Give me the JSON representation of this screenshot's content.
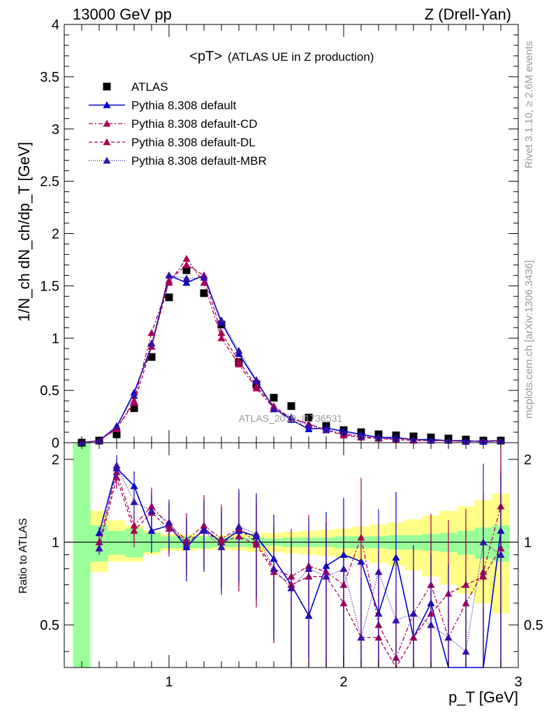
{
  "header": {
    "left": "13000 GeV pp",
    "right": "Z (Drell-Yan)"
  },
  "side": {
    "top": "Rivet 3.1.10, ≥ 2.6M events",
    "bottom": "mcplots.cern.ch [arXiv:1306.3436]"
  },
  "colors": {
    "atlas": "#000000",
    "default": "#0000cc",
    "cd": "#aa0055",
    "dl": "#aa0055",
    "mbr": "#3311aa",
    "band_inner": "#99ff99",
    "band_outer": "#ffff88"
  },
  "chart_data": [
    {
      "type": "line",
      "title": "<pT>",
      "title_suffix": "(ATLAS UE in Z production)",
      "ylabel": "1/N_ch dN_ch/dp_T [GeV]",
      "xlabel": "",
      "watermark": "ATLAS_2019_I1736531",
      "xlim": [
        0.4,
        3.0
      ],
      "ylim": [
        0,
        4
      ],
      "yticks": [
        0,
        0.5,
        1,
        1.5,
        2,
        2.5,
        3,
        3.5,
        4
      ],
      "yticklabels": [
        "0",
        "0.5",
        "1",
        "1.5",
        "2",
        "2.5",
        "3",
        "3.5",
        "4"
      ],
      "legend_position": "top-left",
      "x": [
        0.5,
        0.6,
        0.7,
        0.8,
        0.9,
        1.0,
        1.1,
        1.2,
        1.3,
        1.4,
        1.5,
        1.6,
        1.7,
        1.8,
        1.9,
        2.0,
        2.1,
        2.2,
        2.3,
        2.4,
        2.5,
        2.6,
        2.7,
        2.8,
        2.9
      ],
      "series": [
        {
          "name": "ATLAS",
          "marker": "square",
          "values": [
            0.0,
            0.02,
            0.08,
            0.33,
            0.82,
            1.39,
            1.65,
            1.43,
            1.13,
            0.77,
            0.56,
            0.43,
            0.35,
            0.24,
            0.16,
            0.12,
            0.1,
            0.08,
            0.07,
            0.06,
            0.05,
            0.04,
            0.03,
            0.02,
            0.02
          ]
        },
        {
          "name": "Pythia 8.308 default",
          "marker": "triangle",
          "dash": "",
          "values": [
            0.0,
            0.02,
            0.15,
            0.48,
            0.92,
            1.6,
            1.53,
            1.6,
            1.15,
            0.85,
            0.59,
            0.33,
            0.22,
            0.13,
            0.14,
            0.11,
            0.08,
            0.05,
            0.05,
            0.03,
            0.03,
            0.02,
            0.02,
            0.01,
            0.02
          ]
        },
        {
          "name": "Pythia 8.308 default-CD",
          "marker": "triangle",
          "dash": "6,3,2,3",
          "values": [
            0.0,
            0.02,
            0.13,
            0.4,
            1.05,
            1.53,
            1.76,
            1.53,
            1.0,
            0.75,
            0.52,
            0.33,
            0.24,
            0.18,
            0.12,
            0.08,
            0.06,
            0.04,
            0.04,
            0.03,
            0.02,
            0.02,
            0.01,
            0.02,
            0.02
          ]
        },
        {
          "name": "Pythia 8.308 default-DL",
          "marker": "triangle",
          "dash": "5,3",
          "values": [
            0.0,
            0.02,
            0.14,
            0.38,
            0.92,
            1.55,
            1.7,
            1.6,
            1.05,
            0.78,
            0.54,
            0.35,
            0.23,
            0.18,
            0.12,
            0.07,
            0.05,
            0.04,
            0.03,
            0.02,
            0.02,
            0.02,
            0.01,
            0.02,
            0.02
          ]
        },
        {
          "name": "Pythia 8.308 default-MBR",
          "marker": "triangle",
          "dash": "1,2",
          "values": [
            0.0,
            0.02,
            0.16,
            0.45,
            0.95,
            1.6,
            1.57,
            1.58,
            1.17,
            0.88,
            0.6,
            0.32,
            0.24,
            0.16,
            0.12,
            0.1,
            0.06,
            0.05,
            0.04,
            0.03,
            0.02,
            0.02,
            0.01,
            0.02,
            0.02
          ]
        }
      ]
    },
    {
      "type": "line",
      "title": "",
      "ylabel": "Ratio to ATLAS",
      "xlabel": "p_T [GeV]",
      "xlim": [
        0.4,
        3.0
      ],
      "ylim": [
        0.35,
        2.3
      ],
      "xticks": [
        1,
        2,
        3
      ],
      "xticklabels": [
        "1",
        "2",
        "3"
      ],
      "yticks": [
        0.5,
        1,
        2
      ],
      "yticklabels": [
        "0.5",
        "1",
        "2"
      ],
      "reference_line": 1,
      "band_edges": [
        0.45,
        0.55,
        0.65,
        0.75,
        0.85,
        0.95,
        1.05,
        1.15,
        1.25,
        1.35,
        1.45,
        1.55,
        1.65,
        1.75,
        1.85,
        1.95,
        2.05,
        2.15,
        2.25,
        2.35,
        2.45,
        2.55,
        2.65,
        2.75,
        2.85,
        2.95
      ],
      "band_inner_low": [
        0.35,
        0.85,
        0.9,
        0.88,
        0.92,
        0.95,
        0.95,
        0.95,
        0.96,
        0.96,
        0.96,
        0.97,
        0.96,
        0.96,
        0.96,
        0.95,
        0.95,
        0.95,
        0.94,
        0.94,
        0.93,
        0.92,
        0.9,
        0.87,
        0.85
      ],
      "band_inner_high": [
        2.3,
        1.15,
        1.1,
        1.12,
        1.08,
        1.05,
        1.05,
        1.05,
        1.04,
        1.04,
        1.04,
        1.03,
        1.04,
        1.04,
        1.04,
        1.05,
        1.05,
        1.05,
        1.06,
        1.06,
        1.07,
        1.08,
        1.1,
        1.13,
        1.15
      ],
      "band_outer_low": [
        0.35,
        0.78,
        0.85,
        0.85,
        0.9,
        0.93,
        0.93,
        0.94,
        0.94,
        0.93,
        0.92,
        0.92,
        0.91,
        0.9,
        0.89,
        0.88,
        0.86,
        0.84,
        0.82,
        0.79,
        0.75,
        0.7,
        0.65,
        0.6,
        0.55
      ],
      "band_outer_high": [
        2.3,
        1.3,
        1.2,
        1.15,
        1.1,
        1.07,
        1.07,
        1.06,
        1.06,
        1.07,
        1.08,
        1.08,
        1.09,
        1.1,
        1.11,
        1.12,
        1.14,
        1.16,
        1.18,
        1.21,
        1.25,
        1.3,
        1.35,
        1.42,
        1.5
      ],
      "x": [
        0.6,
        0.7,
        0.8,
        0.9,
        1.0,
        1.1,
        1.2,
        1.3,
        1.4,
        1.5,
        1.6,
        1.7,
        1.8,
        1.9,
        2.0,
        2.1,
        2.2,
        2.3,
        2.4,
        2.5,
        2.6,
        2.7,
        2.8,
        2.9
      ],
      "series": [
        {
          "name": "Pythia 8.308 default",
          "values": [
            1.08,
            1.86,
            1.6,
            1.1,
            1.15,
            0.96,
            1.12,
            1.0,
            1.1,
            1.05,
            0.87,
            0.7,
            0.54,
            0.82,
            0.9,
            0.85,
            0.55,
            0.88,
            0.45,
            0.6,
            0.3,
            0.3,
            0.3,
            1.1
          ]
        },
        {
          "name": "Pythia 8.308 default-CD",
          "values": [
            1.0,
            1.8,
            1.15,
            1.35,
            1.15,
            1.02,
            1.15,
            1.03,
            1.12,
            1.0,
            0.8,
            0.75,
            0.82,
            0.78,
            0.7,
            1.04,
            0.5,
            0.38,
            0.55,
            0.7,
            0.45,
            0.6,
            0.78,
            1.35
          ]
        },
        {
          "name": "Pythia 8.308 default-DL",
          "values": [
            0.95,
            1.72,
            1.1,
            1.28,
            1.12,
            1.0,
            1.1,
            1.0,
            1.05,
            0.98,
            0.78,
            0.7,
            0.75,
            0.75,
            0.6,
            0.45,
            0.45,
            0.35,
            0.45,
            0.55,
            0.65,
            0.7,
            0.75,
            0.95
          ]
        },
        {
          "name": "Pythia 8.308 default-MBR",
          "values": [
            0.95,
            1.9,
            1.4,
            1.3,
            1.18,
            0.98,
            1.1,
            0.96,
            1.14,
            1.07,
            0.8,
            0.68,
            0.8,
            0.75,
            0.8,
            0.45,
            0.78,
            0.52,
            0.55,
            0.5,
            0.45,
            0.4,
            1.0,
            0.9
          ]
        }
      ]
    }
  ]
}
